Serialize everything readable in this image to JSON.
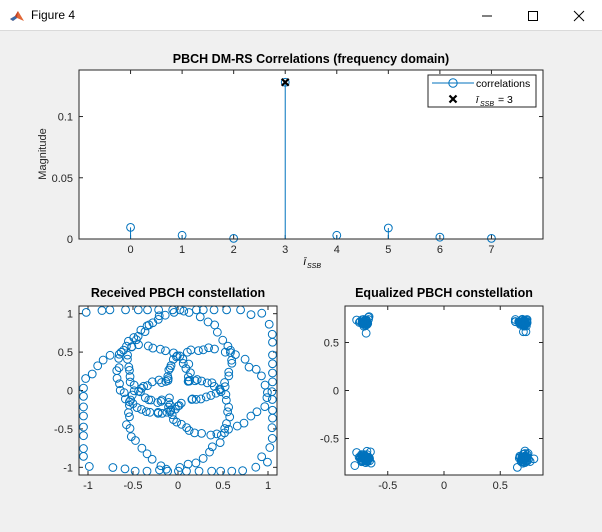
{
  "window": {
    "title": "Figure 4"
  },
  "colors": {
    "series": "#0072bd",
    "marker_x": "#000000",
    "axes_bg": "#ffffff",
    "figure_bg": "#f0f0f0"
  },
  "chart_data": [
    {
      "type": "stem",
      "title": "PBCH DM-RS Correlations (frequency domain)",
      "xlabel": "ī",
      "xlabel_sub": "SSB",
      "ylabel": "Magnitude",
      "xlim": [
        -1,
        8
      ],
      "ylim": [
        0,
        0.138
      ],
      "x_ticks": [
        "0",
        "1",
        "2",
        "3",
        "4",
        "5",
        "6",
        "7"
      ],
      "y_ticks": [
        "0",
        "0.05",
        "0.1"
      ],
      "legend": {
        "placement": "top-right",
        "entries": [
          "correlations",
          "ī",
          "SSB",
          "= 3"
        ]
      },
      "series": [
        {
          "name": "correlations",
          "x": [
            0,
            1,
            2,
            3,
            4,
            5,
            6,
            7
          ],
          "y": [
            0.0095,
            0.003,
            0.0005,
            0.128,
            0.003,
            0.009,
            0.0015,
            0.0005
          ]
        }
      ],
      "detected": {
        "x": 3,
        "y": 0.128
      }
    },
    {
      "type": "scatter",
      "title": "Received PBCH constellation",
      "xlim": [
        -1.1,
        1.1
      ],
      "ylim": [
        -1.1,
        1.1
      ],
      "x_ticks": [
        "-1",
        "-0.5",
        "0",
        "0.5",
        "1"
      ],
      "y_ticks": [
        "-1",
        "-0.5",
        "0",
        "0.5",
        "1"
      ],
      "arms": [
        {
          "start": [
            -1.0,
            1.0
          ],
          "end": [
            -0.7,
            -1.0
          ],
          "rot": 6.2,
          "dir": 1
        },
        {
          "start": [
            -1.0,
            -1.0
          ],
          "end": [
            0.95,
            -0.85
          ],
          "rot": 6.2,
          "dir": 1
        },
        {
          "start": [
            1.0,
            -0.95
          ],
          "end": [
            0.8,
            1.0
          ],
          "rot": 6.2,
          "dir": 1
        },
        {
          "start": [
            0.95,
            1.0
          ],
          "end": [
            -0.2,
            0.95
          ],
          "rot": 6.2,
          "dir": 1
        }
      ],
      "points_per_arm": 62
    },
    {
      "type": "scatter",
      "title": "Equalized PBCH constellation",
      "xlim": [
        -0.88,
        0.88
      ],
      "ylim": [
        -0.88,
        0.88
      ],
      "x_ticks": [
        "-0.5",
        "0",
        "0.5"
      ],
      "y_ticks": [
        "-0.5",
        "0",
        "0.5"
      ],
      "clusters": [
        {
          "center": [
            -0.707,
            0.707
          ]
        },
        {
          "center": [
            0.707,
            0.707
          ]
        },
        {
          "center": [
            -0.707,
            -0.707
          ]
        },
        {
          "center": [
            0.707,
            -0.707
          ]
        }
      ],
      "points_per_cluster": 60
    }
  ]
}
